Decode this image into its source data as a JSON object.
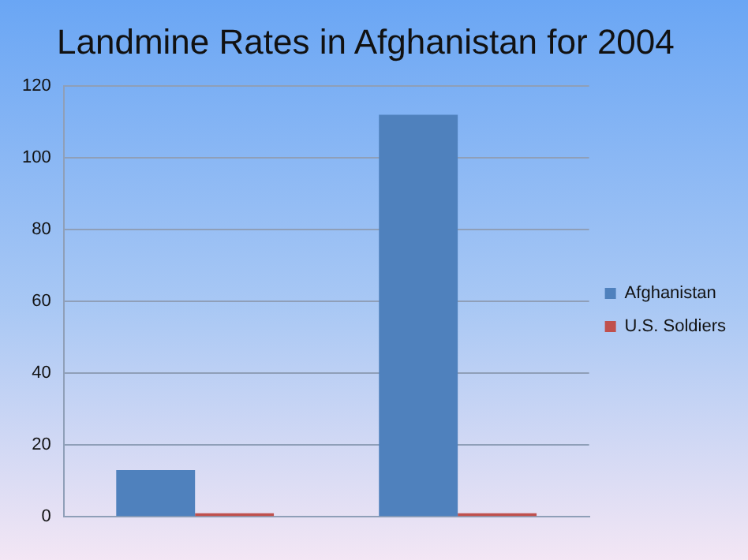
{
  "chart_data": {
    "type": "bar",
    "title": "Landmine Rates in Afghanistan for 2004",
    "categories": [
      null,
      null
    ],
    "series": [
      {
        "name": "Afghanistan",
        "color": "#4f81bd",
        "values": [
          13,
          112
        ]
      },
      {
        "name": "U.S. Soldiers",
        "color": "#c0504d",
        "values": [
          1,
          1
        ]
      }
    ],
    "ylim": [
      0,
      120
    ],
    "yticks": [
      0,
      20,
      40,
      60,
      80,
      100,
      120
    ],
    "grid": "y",
    "legend": "right"
  }
}
